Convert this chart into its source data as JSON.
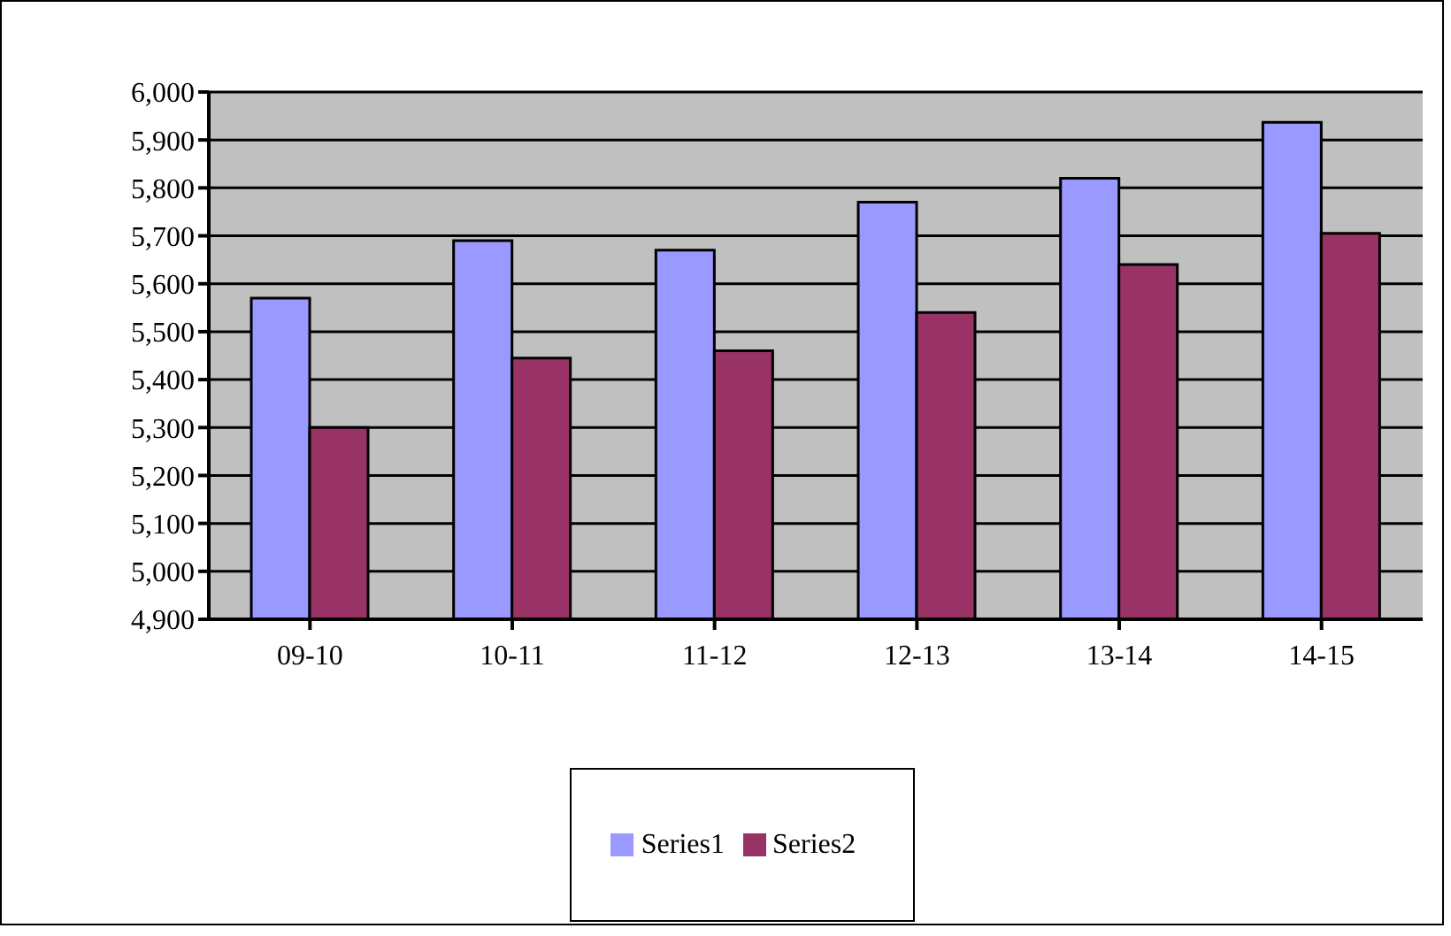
{
  "chart_data": {
    "type": "bar",
    "categories": [
      "09-10",
      "10-11",
      "11-12",
      "12-13",
      "13-14",
      "14-15"
    ],
    "series": [
      {
        "name": "Series1",
        "color": "#9999ff",
        "values": [
          5570,
          5690,
          5670,
          5770,
          5820,
          5937
        ]
      },
      {
        "name": "Series2",
        "color": "#993366",
        "values": [
          5300,
          5445,
          5460,
          5540,
          5640,
          5705
        ]
      }
    ],
    "ylim": [
      4900,
      6000
    ],
    "yticks": [
      {
        "value": 4900,
        "label": "4,900"
      },
      {
        "value": 5000,
        "label": "5,000"
      },
      {
        "value": 5100,
        "label": "5,100"
      },
      {
        "value": 5200,
        "label": "5,200"
      },
      {
        "value": 5300,
        "label": "5,300"
      },
      {
        "value": 5400,
        "label": "5,400"
      },
      {
        "value": 5500,
        "label": "5,500"
      },
      {
        "value": 5600,
        "label": "5,600"
      },
      {
        "value": 5700,
        "label": "5,700"
      },
      {
        "value": 5800,
        "label": "5,800"
      },
      {
        "value": 5900,
        "label": "5,900"
      },
      {
        "value": 6000,
        "label": "6,000"
      }
    ],
    "grid": "y",
    "legend": "bottom"
  }
}
